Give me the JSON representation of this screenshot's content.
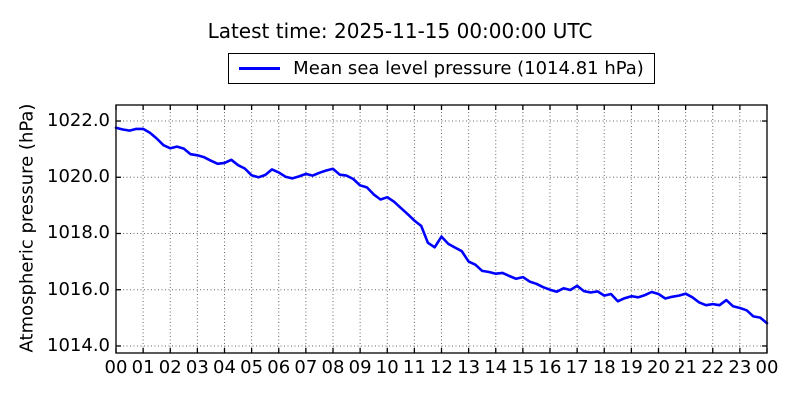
{
  "title": "Latest time: 2025-11-15 00:00:00 UTC",
  "legend": {
    "label": "Mean sea level pressure (1014.81 hPa)",
    "line_color": "#0000ff"
  },
  "chart_data": {
    "type": "line",
    "title": "Latest time: 2025-11-15 00:00:00 UTC",
    "xlabel": "",
    "ylabel": "Atmospheric pressure (hPa)",
    "xlim": [
      0,
      24
    ],
    "ylim": [
      1013.75,
      1022.57
    ],
    "grid": "dotted",
    "grid_color": "#666666",
    "frame_color": "#000000",
    "legend_position": "upper center, above axes",
    "latest_value_hpa": 1014.81,
    "xticks": {
      "positions": [
        0,
        1,
        2,
        3,
        4,
        5,
        6,
        7,
        8,
        9,
        10,
        11,
        12,
        13,
        14,
        15,
        16,
        17,
        18,
        19,
        20,
        21,
        22,
        23,
        24
      ],
      "labels": [
        "00",
        "01",
        "02",
        "03",
        "04",
        "05",
        "06",
        "07",
        "08",
        "09",
        "10",
        "11",
        "12",
        "13",
        "14",
        "15",
        "16",
        "17",
        "18",
        "19",
        "20",
        "21",
        "22",
        "23",
        "00"
      ]
    },
    "yticks": {
      "positions": [
        1014,
        1016,
        1018,
        1020,
        1022
      ],
      "labels": [
        "1014.0",
        "1016.0",
        "1018.0",
        "1020.0",
        "1022.0"
      ]
    },
    "series": [
      {
        "name": "Mean sea level pressure (1014.81 hPa)",
        "color": "#0000ff",
        "x_hours": [
          0,
          0.25,
          0.5,
          0.75,
          1,
          1.25,
          1.5,
          1.75,
          2,
          2.25,
          2.5,
          2.75,
          3,
          3.25,
          3.5,
          3.75,
          4,
          4.25,
          4.5,
          4.75,
          5,
          5.25,
          5.5,
          5.75,
          6,
          6.25,
          6.5,
          6.75,
          7,
          7.25,
          7.5,
          7.75,
          8,
          8.25,
          8.5,
          8.75,
          9,
          9.25,
          9.5,
          9.75,
          10,
          10.25,
          10.5,
          10.75,
          11,
          11.25,
          11.5,
          11.75,
          12,
          12.25,
          12.5,
          12.75,
          13,
          13.25,
          13.5,
          13.75,
          14,
          14.25,
          14.5,
          14.75,
          15,
          15.25,
          15.5,
          15.75,
          16,
          16.25,
          16.5,
          16.75,
          17,
          17.25,
          17.5,
          17.75,
          18,
          18.25,
          18.5,
          18.75,
          19,
          19.25,
          19.5,
          19.75,
          20,
          20.25,
          20.5,
          20.75,
          21,
          21.25,
          21.5,
          21.75,
          22,
          22.25,
          22.5,
          22.75,
          23,
          23.25,
          23.5,
          23.75,
          24
        ],
        "y_hpa": [
          1021.76,
          1021.7,
          1021.66,
          1021.72,
          1021.72,
          1021.58,
          1021.38,
          1021.14,
          1021.03,
          1021.09,
          1021.02,
          1020.82,
          1020.78,
          1020.71,
          1020.59,
          1020.48,
          1020.51,
          1020.62,
          1020.43,
          1020.31,
          1020.07,
          1020.0,
          1020.08,
          1020.28,
          1020.17,
          1020.02,
          1019.96,
          1020.03,
          1020.12,
          1020.06,
          1020.16,
          1020.24,
          1020.3,
          1020.09,
          1020.06,
          1019.94,
          1019.71,
          1019.64,
          1019.39,
          1019.21,
          1019.29,
          1019.13,
          1018.91,
          1018.69,
          1018.46,
          1018.27,
          1017.67,
          1017.51,
          1017.89,
          1017.63,
          1017.5,
          1017.37,
          1017.0,
          1016.89,
          1016.67,
          1016.63,
          1016.57,
          1016.6,
          1016.49,
          1016.39,
          1016.45,
          1016.29,
          1016.21,
          1016.09,
          1016.0,
          1015.93,
          1016.05,
          1015.99,
          1016.14,
          1015.95,
          1015.9,
          1015.94,
          1015.79,
          1015.85,
          1015.59,
          1015.7,
          1015.77,
          1015.73,
          1015.81,
          1015.92,
          1015.85,
          1015.69,
          1015.75,
          1015.79,
          1015.86,
          1015.73,
          1015.55,
          1015.45,
          1015.49,
          1015.45,
          1015.63,
          1015.41,
          1015.35,
          1015.27,
          1015.05,
          1015.01,
          1014.81
        ]
      }
    ]
  }
}
